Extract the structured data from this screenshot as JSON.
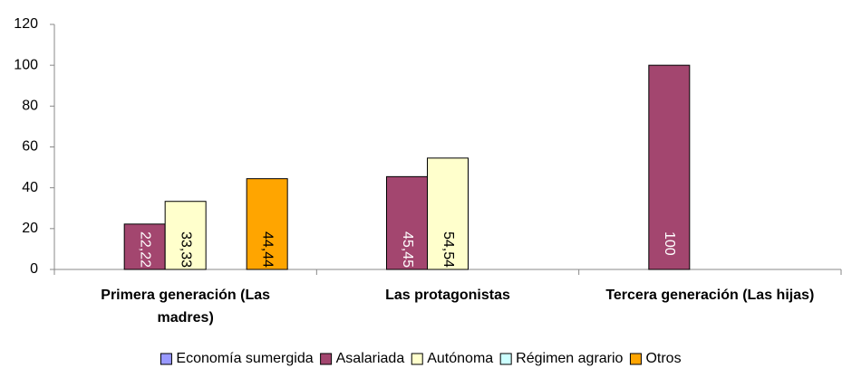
{
  "chart_data": {
    "type": "bar",
    "categories": [
      "Primera generación (Las madres)",
      "Las protagonistas",
      "Tercera generación (Las hijas)"
    ],
    "series": [
      {
        "name": "Economía sumergida",
        "color": "#9999ff",
        "values": [
          null,
          null,
          null
        ]
      },
      {
        "name": "Asalariada",
        "color": "#a3466f",
        "values": [
          22.22,
          45.45,
          100
        ],
        "value_labels": [
          "22,22",
          "45,45",
          "100"
        ],
        "label_color": "#ffffff"
      },
      {
        "name": "Autónoma",
        "color": "#ffffcc",
        "values": [
          33.33,
          54.54,
          null
        ],
        "value_labels": [
          "33,33",
          "54,54",
          null
        ],
        "label_color": "#000000"
      },
      {
        "name": "Régimen agrario",
        "color": "#ccffff",
        "values": [
          null,
          null,
          null
        ]
      },
      {
        "name": "Otros",
        "color": "#ffa500",
        "values": [
          44.44,
          null,
          null
        ],
        "value_labels": [
          "44,44",
          null,
          null
        ],
        "label_color": "#000000"
      }
    ],
    "ylim": [
      0,
      120
    ],
    "yticks": [
      0,
      20,
      40,
      60,
      80,
      100,
      120
    ],
    "legend": "bottom"
  }
}
